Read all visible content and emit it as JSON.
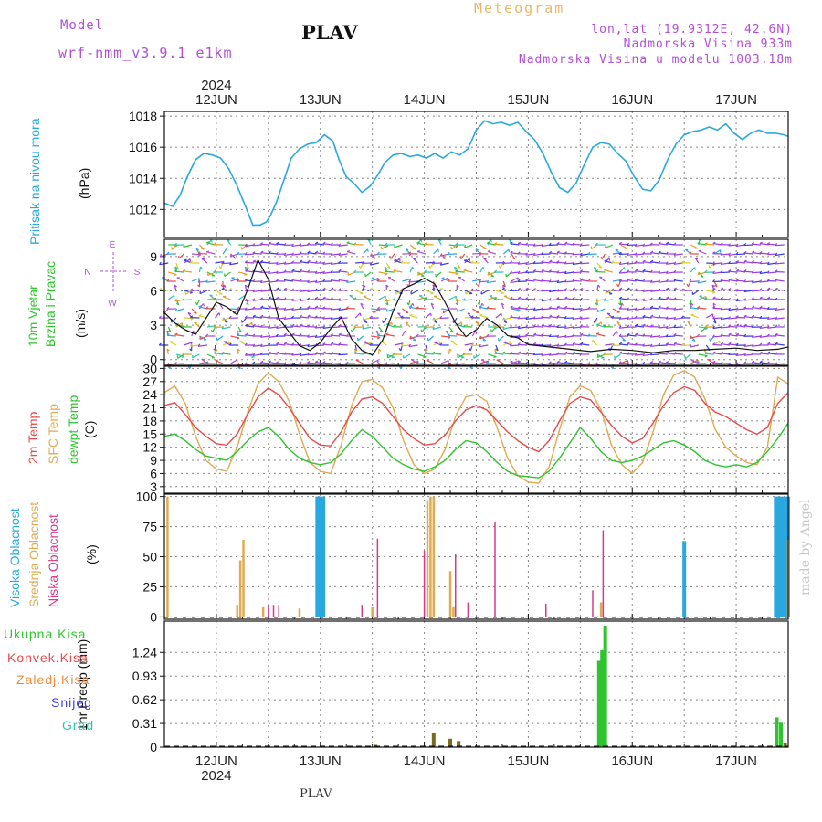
{
  "header": {
    "model_label": "Model",
    "model_name": "wrf-nmm_v3.9.1 e1km",
    "station": "PLAV",
    "meteogram": "Meteogram",
    "lonlat": "lon,lat (19.9312E, 42.6N)",
    "altitude": "Nadmorska Visina 933m",
    "model_altitude": "Nadmorska Visina u modelu 1003.18m"
  },
  "watermark": "made by Angel",
  "footer": {
    "station": "PLAV"
  },
  "colors": {
    "pressure": "#29a8e0",
    "wind_label": "#2ec42e",
    "wind_purple": "#b04fd6",
    "temp2m": "#e84a4a",
    "sfc": "#e0aa50",
    "dewpt": "#2ec42e",
    "high_cloud": "#29a8e0",
    "mid_cloud": "#e0aa50",
    "low_cloud": "#d63a8c",
    "total_precip": "#2ec42e",
    "conv_precip": "#e84a4a",
    "frozen_precip": "#f08a3c",
    "snow": "#4040e8",
    "hail": "#2ec4b0"
  },
  "time_axis": {
    "start_day": 11.5,
    "end_day": 17.5,
    "year": "2024",
    "days": [
      {
        "value": 12,
        "label": "12JUN"
      },
      {
        "value": 13,
        "label": "13JUN"
      },
      {
        "value": 14,
        "label": "14JUN"
      },
      {
        "value": 15,
        "label": "15JUN"
      },
      {
        "value": 16,
        "label": "16JUN"
      },
      {
        "value": 17,
        "label": "17JUN"
      }
    ]
  },
  "chart_data": [
    {
      "type": "line",
      "ylabel_name": "Pritisak na nivou mora",
      "unit": "(hPa)",
      "ylim": [
        1010.2,
        1018.3
      ],
      "yticks": [
        "1012",
        "1014",
        "1016",
        "1018"
      ],
      "series": [
        {
          "name": "Pritisak na nivou mora",
          "x": [
            11.5,
            11.58,
            11.65,
            11.72,
            11.8,
            11.88,
            11.96,
            12.04,
            12.12,
            12.2,
            12.28,
            12.35,
            12.42,
            12.48,
            12.52,
            12.58,
            12.65,
            12.72,
            12.8,
            12.88,
            12.96,
            13.04,
            13.12,
            13.18,
            13.25,
            13.32,
            13.4,
            13.48,
            13.55,
            13.62,
            13.7,
            13.78,
            13.86,
            13.94,
            14.02,
            14.1,
            14.18,
            14.26,
            14.34,
            14.42,
            14.5,
            14.58,
            14.66,
            14.74,
            14.82,
            14.9,
            14.98,
            15.06,
            15.14,
            15.22,
            15.3,
            15.38,
            15.46,
            15.54,
            15.62,
            15.7,
            15.78,
            15.86,
            15.94,
            16.02,
            16.1,
            16.18,
            16.26,
            16.34,
            16.42,
            16.5,
            16.58,
            16.66,
            16.74,
            16.82,
            16.9,
            16.98,
            17.06,
            17.14,
            17.22,
            17.3,
            17.38,
            17.46,
            17.5
          ],
          "y": [
            1012.4,
            1012.2,
            1012.9,
            1014.1,
            1015.2,
            1015.6,
            1015.5,
            1015.3,
            1014.6,
            1013.5,
            1012.2,
            1011.0,
            1011.0,
            1011.2,
            1011.6,
            1012.5,
            1013.9,
            1015.3,
            1015.9,
            1016.2,
            1016.3,
            1016.8,
            1016.4,
            1015.2,
            1014.1,
            1013.7,
            1013.1,
            1013.5,
            1014.2,
            1015.0,
            1015.5,
            1015.6,
            1015.4,
            1015.5,
            1015.3,
            1015.6,
            1015.3,
            1015.7,
            1015.5,
            1015.9,
            1017.1,
            1017.7,
            1017.5,
            1017.6,
            1017.4,
            1017.6,
            1017.0,
            1016.5,
            1015.6,
            1014.4,
            1013.4,
            1013.1,
            1013.7,
            1014.9,
            1016.0,
            1016.3,
            1016.2,
            1015.6,
            1015.1,
            1014.1,
            1013.3,
            1013.2,
            1013.9,
            1015.2,
            1016.2,
            1016.8,
            1017.0,
            1017.1,
            1017.3,
            1017.1,
            1017.5,
            1016.9,
            1016.5,
            1016.9,
            1017.1,
            1016.9,
            1016.9,
            1016.8,
            1016.7
          ]
        }
      ]
    },
    {
      "type": "line",
      "ylabel_name": "10m Vjetar",
      "ylabel_name2": "Brzina i Pravac",
      "unit": "(m/s)",
      "compass": {
        "north": "N",
        "west": "W",
        "east": "E",
        "south": "S"
      },
      "ylim": [
        -0.5,
        10.5
      ],
      "yticks": [
        "0",
        "3",
        "6",
        "9"
      ],
      "series": [
        {
          "name": "Brzina",
          "x": [
            11.5,
            11.6,
            11.7,
            11.8,
            11.9,
            12.0,
            12.1,
            12.2,
            12.3,
            12.4,
            12.5,
            12.6,
            12.7,
            12.8,
            12.9,
            13.0,
            13.1,
            13.2,
            13.3,
            13.4,
            13.5,
            13.6,
            13.7,
            13.8,
            13.9,
            14.0,
            14.1,
            14.2,
            14.3,
            14.4,
            14.5,
            14.6,
            14.7,
            14.8,
            14.9,
            15.0,
            15.2,
            15.4,
            15.6,
            15.8,
            16.0,
            16.2,
            16.4,
            16.6,
            16.8,
            17.0,
            17.2,
            17.4,
            17.5
          ],
          "y": [
            4.1,
            3.2,
            2.6,
            2.2,
            3.6,
            5.0,
            4.6,
            3.9,
            6.1,
            8.7,
            7.0,
            3.6,
            2.4,
            1.2,
            0.8,
            1.5,
            2.7,
            3.7,
            1.8,
            0.8,
            0.4,
            1.7,
            4.2,
            6.2,
            6.6,
            7.1,
            6.6,
            5.0,
            3.2,
            2.0,
            2.6,
            3.6,
            3.0,
            2.1,
            1.9,
            1.3,
            1.1,
            0.9,
            0.7,
            0.9,
            0.8,
            0.6,
            0.8,
            0.8,
            0.9,
            1.0,
            0.8,
            0.9,
            1.1
          ]
        }
      ]
    },
    {
      "type": "line",
      "ylabel_name": "2m Temp",
      "ylabel_name2": "SFC Temp",
      "ylabel_name3": "dewpt Temp",
      "unit": "(C)",
      "ylim": [
        1.5,
        30.5
      ],
      "yticks": [
        "3",
        "6",
        "9",
        "12",
        "15",
        "18",
        "21",
        "24",
        "27",
        "30"
      ],
      "series": [
        {
          "name": "2m Temp",
          "x": [
            11.5,
            11.6,
            11.7,
            11.8,
            11.9,
            12.0,
            12.1,
            12.2,
            12.3,
            12.4,
            12.5,
            12.6,
            12.7,
            12.8,
            12.9,
            13.0,
            13.1,
            13.2,
            13.3,
            13.4,
            13.5,
            13.6,
            13.7,
            13.8,
            13.9,
            14.0,
            14.1,
            14.2,
            14.3,
            14.4,
            14.5,
            14.6,
            14.7,
            14.8,
            14.9,
            15.0,
            15.1,
            15.2,
            15.3,
            15.4,
            15.5,
            15.6,
            15.7,
            15.8,
            15.9,
            16.0,
            16.1,
            16.2,
            16.3,
            16.4,
            16.5,
            16.6,
            16.7,
            16.8,
            16.9,
            17.0,
            17.1,
            17.2,
            17.3,
            17.4,
            17.5
          ],
          "y": [
            21.5,
            22.2,
            19.5,
            16.5,
            14.5,
            12.8,
            12.5,
            15.0,
            19.5,
            23.5,
            25.5,
            24.0,
            21.0,
            17.5,
            14.0,
            12.5,
            12.3,
            15.5,
            20.0,
            23.0,
            23.5,
            22.0,
            19.0,
            16.0,
            14.0,
            12.5,
            12.8,
            14.8,
            18.0,
            20.5,
            21.5,
            20.5,
            18.0,
            15.5,
            13.5,
            12.0,
            11.0,
            13.5,
            18.0,
            22.0,
            23.5,
            22.8,
            20.0,
            17.0,
            14.5,
            13.0,
            14.0,
            17.5,
            21.5,
            24.5,
            25.8,
            25.0,
            22.0,
            20.0,
            19.0,
            17.5,
            16.0,
            15.0,
            16.5,
            22.0,
            24.5
          ]
        },
        {
          "name": "SFC Temp",
          "x": [
            11.5,
            11.6,
            11.7,
            11.8,
            11.9,
            12.0,
            12.1,
            12.2,
            12.3,
            12.4,
            12.5,
            12.6,
            12.7,
            12.8,
            12.9,
            13.0,
            13.1,
            13.2,
            13.3,
            13.4,
            13.5,
            13.6,
            13.7,
            13.8,
            13.9,
            14.0,
            14.1,
            14.2,
            14.3,
            14.4,
            14.5,
            14.6,
            14.7,
            14.8,
            14.9,
            15.0,
            15.1,
            15.2,
            15.3,
            15.4,
            15.5,
            15.6,
            15.7,
            15.8,
            15.9,
            16.0,
            16.1,
            16.2,
            16.3,
            16.4,
            16.5,
            16.6,
            16.7,
            16.8,
            16.9,
            17.0,
            17.1,
            17.2,
            17.3,
            17.4,
            17.5
          ],
          "y": [
            24.5,
            26.0,
            22.0,
            14.5,
            9.0,
            7.0,
            6.5,
            12.0,
            20.0,
            26.5,
            29.0,
            27.0,
            22.5,
            15.0,
            8.5,
            6.5,
            6.0,
            12.5,
            21.5,
            27.0,
            27.5,
            25.5,
            21.0,
            13.5,
            8.0,
            6.0,
            7.0,
            11.5,
            19.0,
            23.5,
            24.0,
            22.5,
            16.5,
            9.5,
            5.5,
            4.0,
            3.8,
            7.5,
            16.0,
            23.5,
            26.0,
            25.0,
            20.5,
            12.5,
            8.0,
            6.0,
            8.5,
            15.5,
            24.0,
            28.5,
            29.5,
            28.0,
            23.0,
            16.0,
            12.0,
            10.0,
            8.5,
            8.0,
            12.0,
            28.0,
            26.5
          ]
        },
        {
          "name": "dewpt Temp",
          "x": [
            11.5,
            11.6,
            11.7,
            11.8,
            11.9,
            12.0,
            12.1,
            12.2,
            12.3,
            12.4,
            12.5,
            12.6,
            12.7,
            12.8,
            12.9,
            13.0,
            13.1,
            13.2,
            13.3,
            13.4,
            13.5,
            13.6,
            13.7,
            13.8,
            13.9,
            14.0,
            14.1,
            14.2,
            14.3,
            14.4,
            14.5,
            14.6,
            14.7,
            14.8,
            14.9,
            15.0,
            15.1,
            15.2,
            15.3,
            15.4,
            15.5,
            15.6,
            15.7,
            15.8,
            15.9,
            16.0,
            16.1,
            16.2,
            16.3,
            16.4,
            16.5,
            16.6,
            16.7,
            16.8,
            16.9,
            17.0,
            17.1,
            17.2,
            17.3,
            17.4,
            17.5
          ],
          "y": [
            14.5,
            15.0,
            13.5,
            11.5,
            10.0,
            9.5,
            9.0,
            11.0,
            13.5,
            15.5,
            16.5,
            14.5,
            11.5,
            9.5,
            8.5,
            8.0,
            8.5,
            10.5,
            13.5,
            16.0,
            14.5,
            12.0,
            9.5,
            8.0,
            7.0,
            6.5,
            7.5,
            9.0,
            11.5,
            13.5,
            13.0,
            11.0,
            8.5,
            6.5,
            5.5,
            5.3,
            5.0,
            6.5,
            9.5,
            13.0,
            16.5,
            14.0,
            11.0,
            9.0,
            8.5,
            9.0,
            10.0,
            11.5,
            13.0,
            13.5,
            12.5,
            11.0,
            9.0,
            8.0,
            7.5,
            8.0,
            7.5,
            8.5,
            11.0,
            14.0,
            17.5
          ]
        }
      ]
    },
    {
      "type": "bar",
      "ylabel_name": "Visoka Oblacnost",
      "ylabel_name2": "Srednja Oblacnost",
      "ylabel_name3": "Niska Oblacnost",
      "unit": "(%)",
      "ylim": [
        -2,
        102
      ],
      "yticks": [
        "0",
        "25",
        "50",
        "75",
        "100"
      ],
      "series": [
        {
          "name": "Visoka Oblacnost",
          "x": [
            12.97,
            13.0,
            13.03,
            16.5,
            17.38,
            17.41,
            17.44,
            17.47,
            17.5
          ],
          "y": [
            100,
            100,
            100,
            63,
            100,
            100,
            100,
            100,
            100
          ]
        },
        {
          "name": "Srednja Oblacnost",
          "x": [
            11.53,
            12.2,
            12.23,
            12.26,
            12.45,
            12.8,
            13.5,
            14.03,
            14.06,
            14.09,
            14.25,
            14.28,
            15.7,
            17.5
          ],
          "y": [
            100,
            10,
            47,
            64,
            8,
            7,
            8,
            97,
            100,
            100,
            38,
            8,
            12,
            64
          ]
        },
        {
          "name": "Niska Oblacnost",
          "x": [
            12.5,
            12.55,
            12.6,
            13.4,
            13.55,
            14.0,
            14.3,
            14.42,
            14.68,
            15.17,
            15.62,
            15.72
          ],
          "y": [
            10,
            10,
            10,
            10,
            65,
            55,
            52,
            12,
            79,
            11,
            22,
            72
          ]
        }
      ]
    },
    {
      "type": "bar",
      "ylabel_name": "1hr Precip (mm)",
      "ylim": [
        0,
        1.65
      ],
      "yticks": [
        "0",
        "0.31",
        "0.62",
        "0.93",
        "1.24"
      ],
      "legend": [
        "Ukupna Kisa",
        "Konvek.Kisa",
        "Zaledj.Kisa",
        "Snijeg",
        "Grad"
      ],
      "series": [
        {
          "name": "Ukupna Kisa",
          "x": [
            15.68,
            15.71,
            15.74,
            17.39,
            17.43
          ],
          "y": [
            1.13,
            1.27,
            1.59,
            0.39,
            0.32
          ]
        },
        {
          "name": "Konvek.Kisa",
          "x": [
            13.53,
            14.09,
            14.25,
            14.33,
            17.47
          ],
          "y": [
            0.03,
            0.18,
            0.11,
            0.08,
            0.05
          ]
        }
      ]
    }
  ]
}
